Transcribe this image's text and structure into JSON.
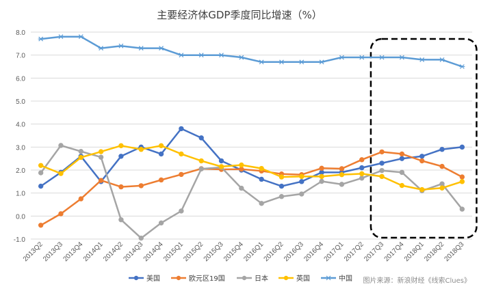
{
  "chart_data": {
    "type": "line",
    "title": "主要经济体GDP季度同比增速（%）",
    "source": "图片来源：新浪财经《线索Clues》",
    "categories": [
      "2013Q2",
      "2013Q3",
      "2013Q4",
      "2014Q1",
      "2014Q2",
      "2014Q3",
      "2014Q4",
      "2015Q1",
      "2015Q2",
      "2015Q3",
      "2015Q4",
      "2016Q1",
      "2016Q2",
      "2016Q3",
      "2016Q4",
      "2017Q1",
      "2017Q2",
      "2017Q3",
      "2017Q4",
      "2018Q1",
      "2018Q2",
      "2018Q3"
    ],
    "ylim": [
      -1.0,
      8.0
    ],
    "yticks": [
      "-1.0",
      "0.0",
      "1.0",
      "2.0",
      "3.0",
      "4.0",
      "5.0",
      "6.0",
      "7.0",
      "8.0"
    ],
    "grid": true,
    "legend_position": "bottom",
    "highlight_box": {
      "from_category": "2017Q3",
      "to_category": "2018Q3",
      "style": "dashed"
    },
    "series": [
      {
        "name": "美国",
        "color": "#4472c4",
        "marker": "circle",
        "values": [
          1.3,
          1.9,
          2.6,
          1.5,
          2.6,
          3.0,
          2.7,
          3.8,
          3.4,
          2.4,
          2.0,
          1.6,
          1.3,
          1.5,
          1.9,
          1.9,
          2.1,
          2.3,
          2.5,
          2.6,
          2.9,
          3.0
        ]
      },
      {
        "name": "欧元区19国",
        "color": "#ed7d31",
        "marker": "circle",
        "values": [
          -0.4,
          0.1,
          0.75,
          1.55,
          1.27,
          1.32,
          1.57,
          1.81,
          2.06,
          2.03,
          2.04,
          1.96,
          1.83,
          1.8,
          2.08,
          2.06,
          2.45,
          2.79,
          2.7,
          2.4,
          2.16,
          1.7
        ]
      },
      {
        "name": "日本",
        "color": "#a5a5a5",
        "marker": "circle",
        "values": [
          1.88,
          3.07,
          2.81,
          2.56,
          -0.16,
          -0.96,
          -0.3,
          0.22,
          2.05,
          2.12,
          1.21,
          0.55,
          0.85,
          0.96,
          1.51,
          1.38,
          1.65,
          1.98,
          1.9,
          1.1,
          1.4,
          0.3
        ]
      },
      {
        "name": "英国",
        "color": "#ffc000",
        "marker": "circle",
        "values": [
          2.2,
          1.85,
          2.55,
          2.8,
          3.06,
          2.9,
          3.06,
          2.7,
          2.4,
          2.15,
          2.22,
          2.07,
          1.7,
          1.72,
          1.72,
          1.8,
          1.84,
          1.72,
          1.33,
          1.15,
          1.22,
          1.5
        ]
      },
      {
        "name": "中国",
        "color": "#5b9bd5",
        "marker": "asterisk",
        "values": [
          7.7,
          7.8,
          7.8,
          7.3,
          7.4,
          7.3,
          7.3,
          7.0,
          7.0,
          7.0,
          6.9,
          6.7,
          6.7,
          6.7,
          6.7,
          6.9,
          6.9,
          6.9,
          6.9,
          6.8,
          6.8,
          6.5
        ]
      }
    ]
  }
}
